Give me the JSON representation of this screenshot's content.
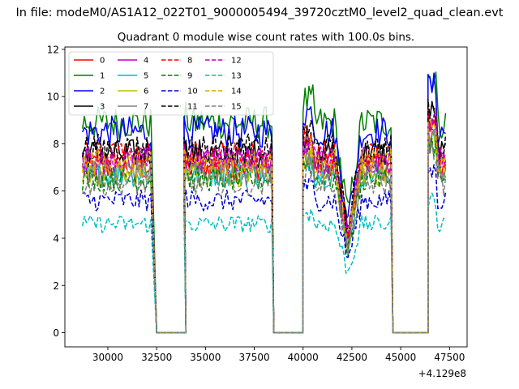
{
  "figure": {
    "suptitle": "In file: modeM0/AS1A12_022T01_9000005494_39720cztM0_level2_quad_clean.evt",
    "offset_label": "+4.129e8"
  },
  "chart_data": {
    "type": "line",
    "title": "Quadrant 0 module wise count rates with 100.0s bins.",
    "xlabel": "",
    "ylabel": "",
    "x_offset": 412900000,
    "xlim": [
      27800,
      48400
    ],
    "ylim": [
      -0.6,
      12.1
    ],
    "x_ticks": [
      30000,
      32500,
      35000,
      37500,
      40000,
      42500,
      45000,
      47500
    ],
    "x_tick_labels": [
      "30000",
      "32500",
      "35000",
      "37500",
      "40000",
      "42500",
      "45000",
      "47500"
    ],
    "y_ticks": [
      0,
      2,
      4,
      6,
      8,
      10,
      12
    ],
    "y_tick_labels": [
      "0",
      "2",
      "4",
      "6",
      "8",
      "10",
      "12"
    ],
    "bin_seconds": 100,
    "time_segments": [
      [
        28700,
        32200
      ],
      [
        33900,
        38400
      ],
      [
        40000,
        44500
      ],
      [
        46400,
        47300
      ]
    ],
    "zero_segments": [
      [
        32500,
        34000
      ],
      [
        38500,
        40000
      ],
      [
        44600,
        46400
      ]
    ],
    "legend": {
      "location": "upper left",
      "columns": 4
    },
    "series": [
      {
        "name": "0",
        "color": "#ff0000",
        "dash": "solid",
        "level": 7.0
      },
      {
        "name": "1",
        "color": "#008000",
        "dash": "solid",
        "level": 8.9
      },
      {
        "name": "2",
        "color": "#0000ff",
        "dash": "solid",
        "level": 8.5
      },
      {
        "name": "3",
        "color": "#000000",
        "dash": "solid",
        "level": 7.6
      },
      {
        "name": "4",
        "color": "#bf00bf",
        "dash": "solid",
        "level": 7.3
      },
      {
        "name": "5",
        "color": "#00bfbf",
        "dash": "solid",
        "level": 6.7
      },
      {
        "name": "6",
        "color": "#bfbf00",
        "dash": "solid",
        "level": 6.7
      },
      {
        "name": "7",
        "color": "#808080",
        "dash": "solid",
        "level": 6.9
      },
      {
        "name": "8",
        "color": "#ff0000",
        "dash": "dashed",
        "level": 7.5
      },
      {
        "name": "9",
        "color": "#008000",
        "dash": "dashed",
        "level": 6.5
      },
      {
        "name": "10",
        "color": "#0000cc",
        "dash": "dashed",
        "level": 5.6
      },
      {
        "name": "11",
        "color": "#000000",
        "dash": "dashed",
        "level": 7.8
      },
      {
        "name": "12",
        "color": "#bf00bf",
        "dash": "dashed",
        "level": 7.3
      },
      {
        "name": "13",
        "color": "#00bfbf",
        "dash": "dashed",
        "level": 4.6
      },
      {
        "name": "14",
        "color": "#ddaa00",
        "dash": "dashed",
        "level": 7.2
      },
      {
        "name": "15",
        "color": "#808080",
        "dash": "dashed",
        "level": 6.3
      }
    ]
  }
}
